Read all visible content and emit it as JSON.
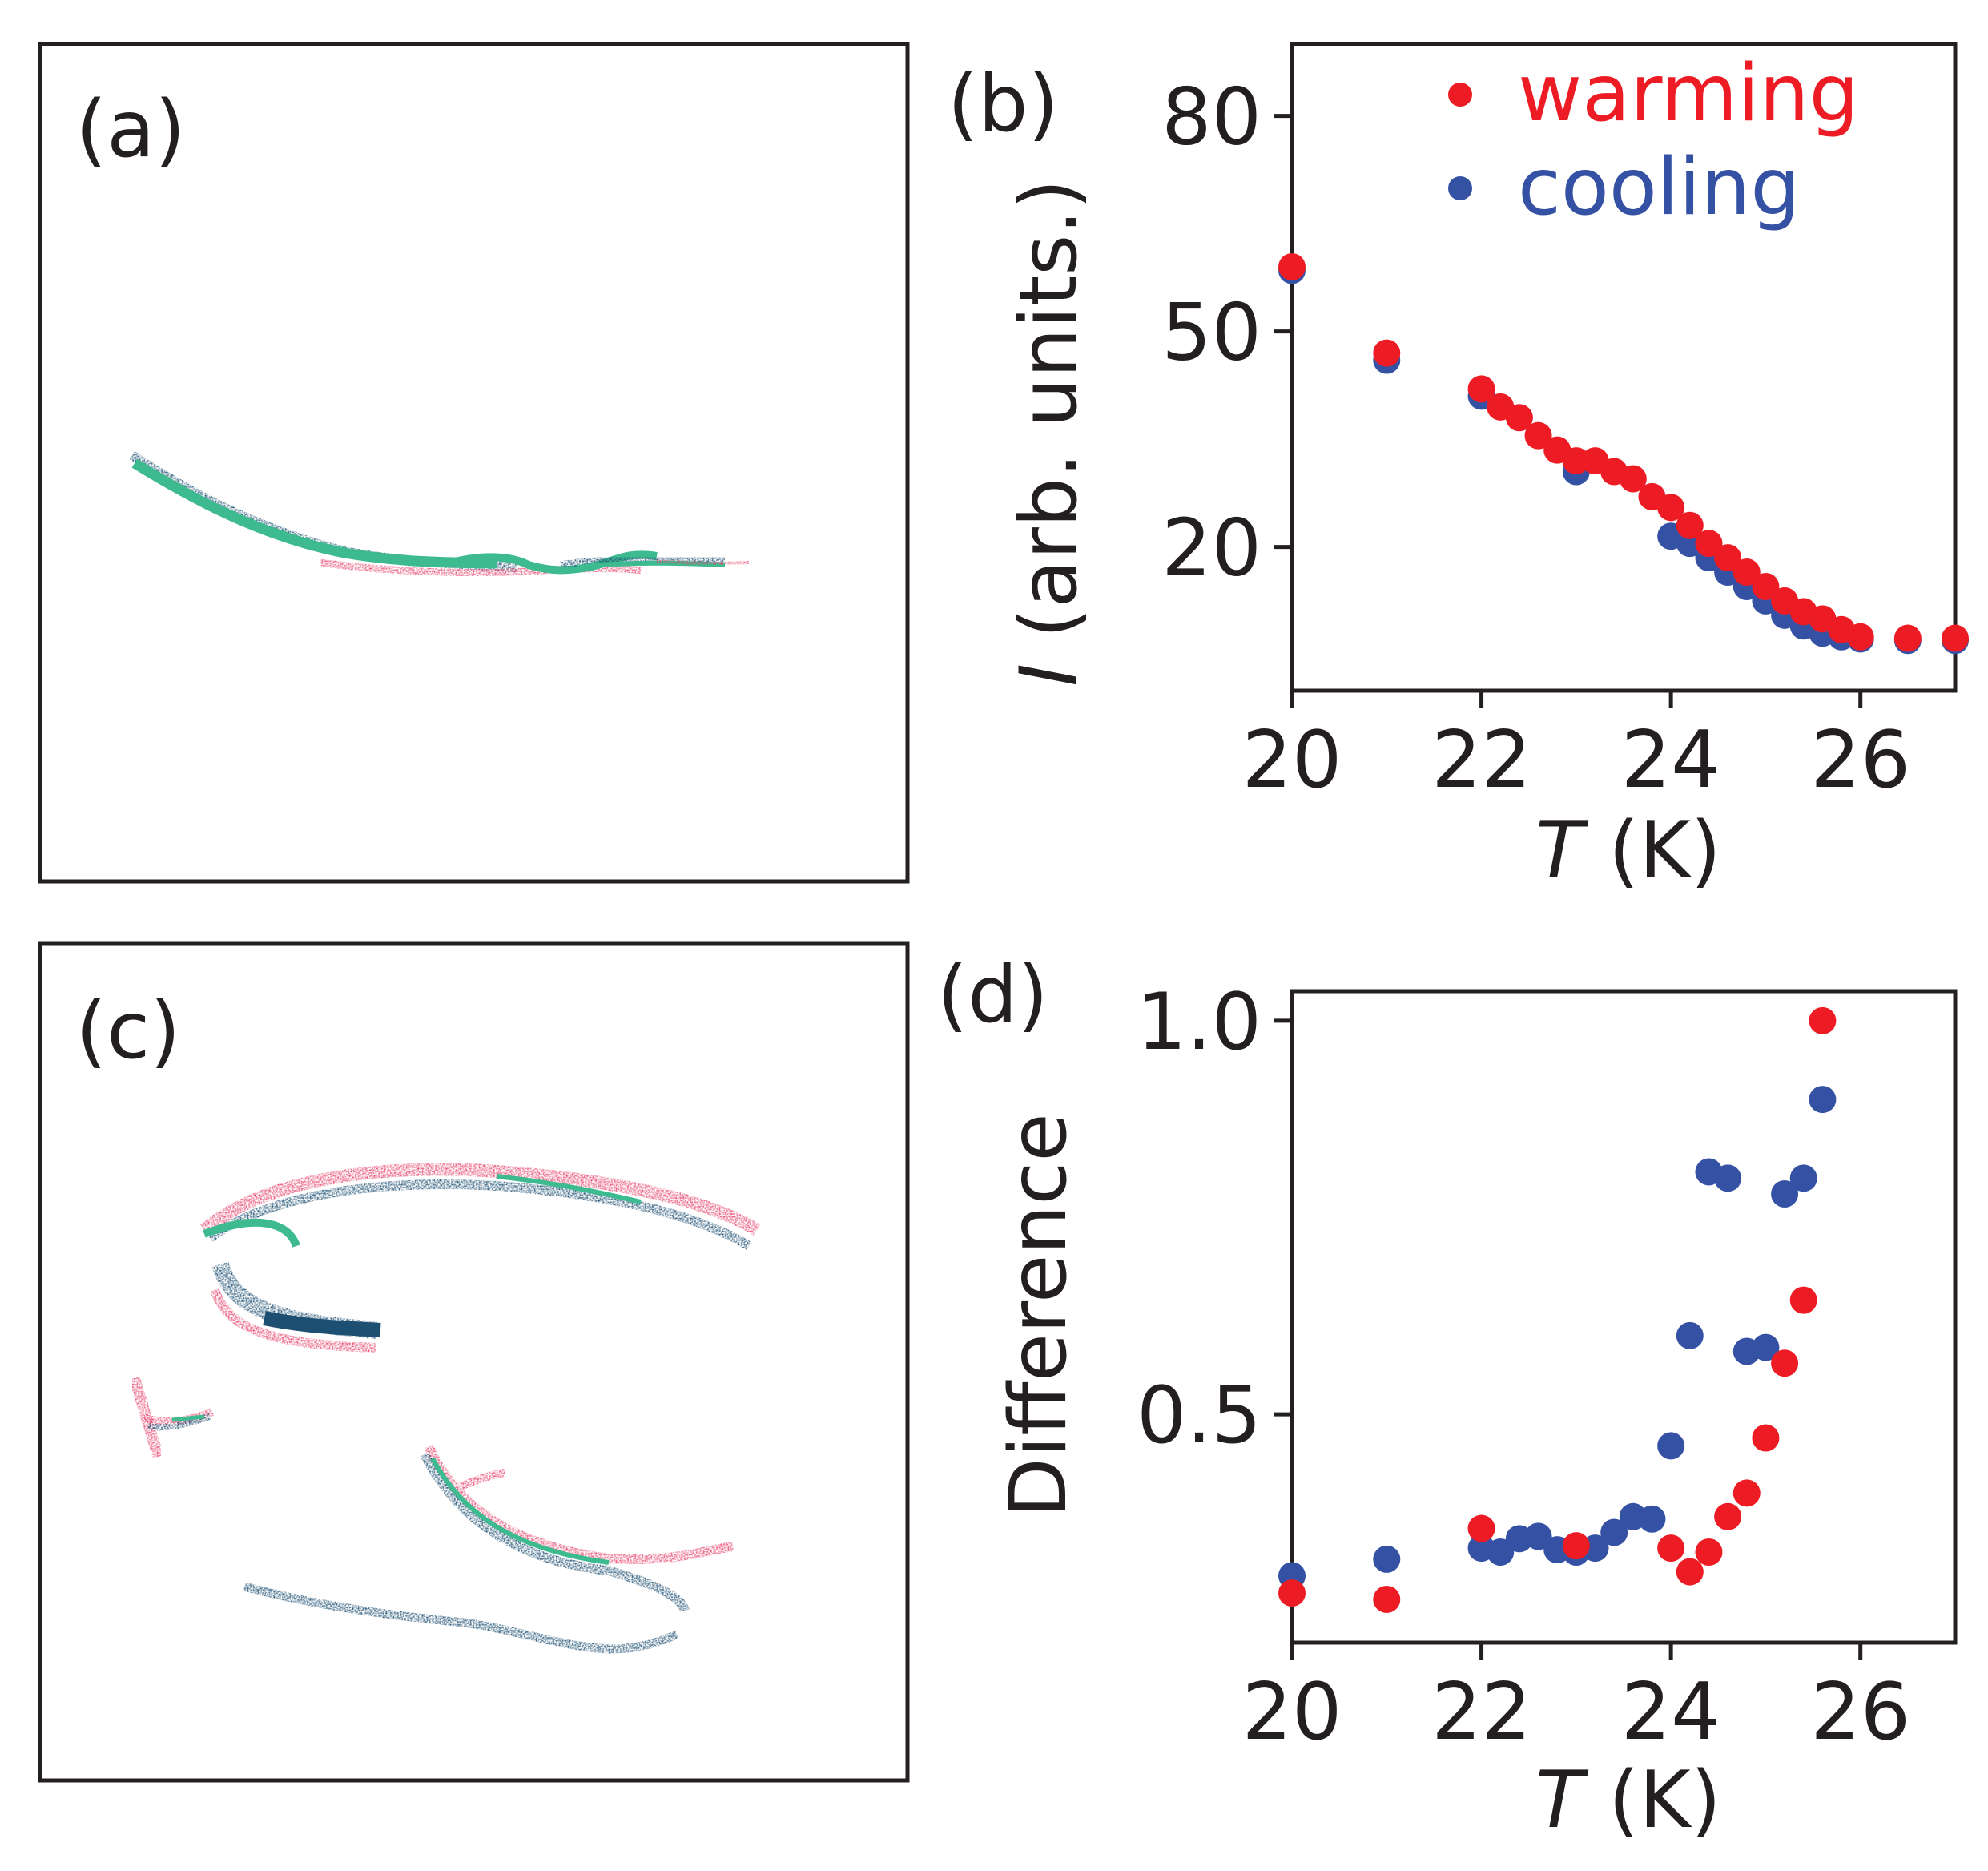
{
  "panel_labels": {
    "a": "(a)",
    "b": "(b)",
    "c": "(c)",
    "d": "(d)"
  },
  "colors": {
    "warming": "#ed1c24",
    "cooling": "#3551a4",
    "axis": "#231f20",
    "map_pink": "#e8466e",
    "map_teal": "#3dba8f",
    "map_navy": "#1d4f72"
  },
  "chart_data": [
    {
      "panel": "(b)",
      "type": "scatter",
      "xlabel_italic": "T",
      "xlabel_rest": " (K)",
      "ylabel_italic": "I",
      "ylabel_rest": " (arb. units.)",
      "xlim": [
        20,
        27
      ],
      "ylim": [
        0,
        90
      ],
      "xticks": [
        20,
        22,
        24,
        26
      ],
      "yticks": [
        20,
        50,
        80
      ],
      "legend": {
        "position": "top-right",
        "entries": [
          "warming",
          "cooling"
        ]
      },
      "series": [
        {
          "name": "cooling",
          "color": "#3551a4",
          "x": [
            20,
            21,
            22,
            23,
            24,
            24.2,
            24.4,
            24.6,
            24.8,
            25,
            25.2,
            25.4,
            25.6,
            25.8,
            26,
            26.5,
            27
          ],
          "y": [
            58.5,
            46,
            41,
            30.5,
            21.5,
            20.5,
            18.5,
            16.5,
            14.5,
            12.5,
            10.5,
            9,
            8,
            7.5,
            7.2,
            7,
            7
          ]
        },
        {
          "name": "warming",
          "color": "#ed1c24",
          "x": [
            20,
            21,
            22,
            22.2,
            22.4,
            22.6,
            22.8,
            23,
            23.2,
            23.4,
            23.6,
            23.8,
            24,
            24.2,
            24.4,
            24.6,
            24.8,
            25,
            25.2,
            25.4,
            25.6,
            25.8,
            26,
            26.5,
            27
          ],
          "y": [
            59,
            47,
            42,
            39.5,
            38,
            35.5,
            33.5,
            32,
            32,
            30.5,
            29.5,
            27,
            25.5,
            23,
            20.5,
            18.5,
            16.5,
            14.5,
            12.5,
            11,
            10,
            8.5,
            7.5,
            7.3,
            7.3
          ]
        }
      ]
    },
    {
      "panel": "(d)",
      "type": "scatter",
      "xlabel_italic": "T",
      "xlabel_rest": " (K)",
      "ylabel": "Difference",
      "xlim": [
        20,
        27
      ],
      "ylim": [
        0.21,
        1.0375
      ],
      "xticks": [
        20,
        22,
        24,
        26
      ],
      "yticks": [
        0.5,
        1.0
      ],
      "series": [
        {
          "name": "cooling",
          "color": "#3551a4",
          "x": [
            20,
            21,
            22,
            22.2,
            22.4,
            22.6,
            22.8,
            23,
            23.2,
            23.4,
            23.6,
            23.8,
            24,
            24.2,
            24.4,
            24.6,
            24.8,
            25,
            25.2,
            25.4,
            25.6
          ],
          "y": [
            0.295,
            0.316,
            0.33,
            0.325,
            0.342,
            0.345,
            0.328,
            0.325,
            0.33,
            0.35,
            0.37,
            0.367,
            0.46,
            0.6,
            0.808,
            0.8,
            0.58,
            0.585,
            0.78,
            0.8,
            0.9
          ]
        },
        {
          "name": "warming",
          "color": "#ed1c24",
          "x": [
            20,
            21,
            22,
            23,
            24,
            24.2,
            24.4,
            24.6,
            24.8,
            25,
            25.2,
            25.4,
            25.6
          ],
          "y": [
            0.273,
            0.265,
            0.355,
            0.333,
            0.33,
            0.3,
            0.325,
            0.37,
            0.4,
            0.47,
            0.565,
            0.645,
            1.0
          ]
        }
      ]
    }
  ]
}
